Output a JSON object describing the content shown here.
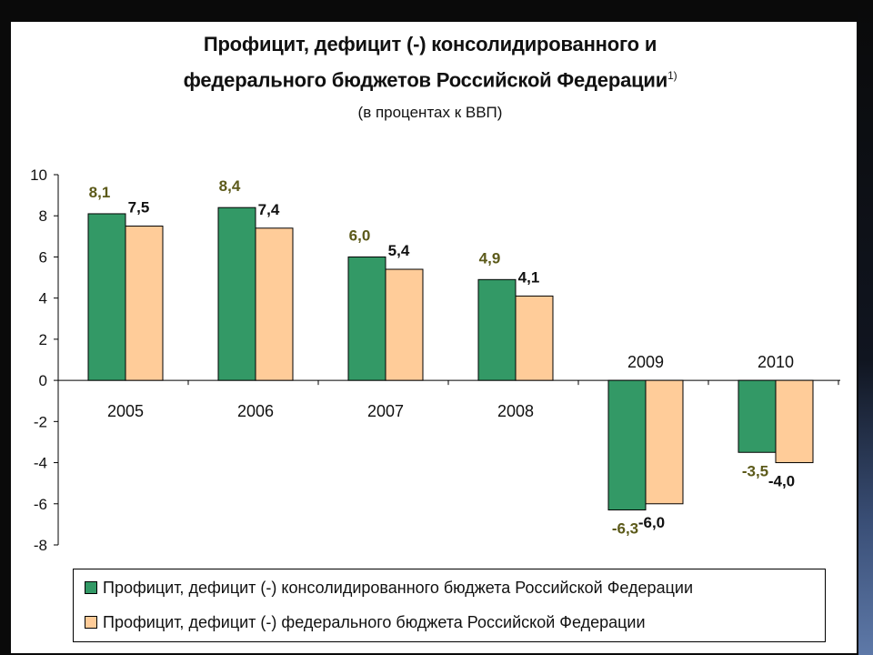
{
  "colors": {
    "consolidated": "#339966",
    "federal": "#FFCC99",
    "positive_label": "#5c5a1a",
    "negative_label": "#111111"
  },
  "chart_data": {
    "type": "bar",
    "title_line1": "Профицит, дефицит (-) консолидированного и",
    "title_line2": "федерального бюджетов Российской Федерации",
    "title_footnote": "1)",
    "subtitle": "(в процентах к ВВП)",
    "categories": [
      "2005",
      "2006",
      "2007",
      "2008",
      "2009",
      "2010"
    ],
    "series": [
      {
        "name": "Профицит, дефицит (-) консолидированного бюджета Российской Федерации",
        "values": [
          8.1,
          8.4,
          6.0,
          4.9,
          -6.3,
          -3.5
        ],
        "labels": [
          "8,1",
          "8,4",
          "6,0",
          "4,9",
          "-6,3",
          "-3,5"
        ]
      },
      {
        "name": "Профицит, дефицит (-) федерального бюджета Российской Федерации",
        "values": [
          7.5,
          7.4,
          5.4,
          4.1,
          -6.0,
          -4.0
        ],
        "labels": [
          "7,5",
          "7,4",
          "5,4",
          "4,1",
          "-6,0",
          "-4,0"
        ]
      }
    ],
    "ylim": [
      -8,
      10
    ],
    "yticks": [
      10,
      8,
      6,
      4,
      2,
      0,
      -2,
      -4,
      -6,
      -8
    ],
    "legend_position": "bottom",
    "grid": false
  }
}
